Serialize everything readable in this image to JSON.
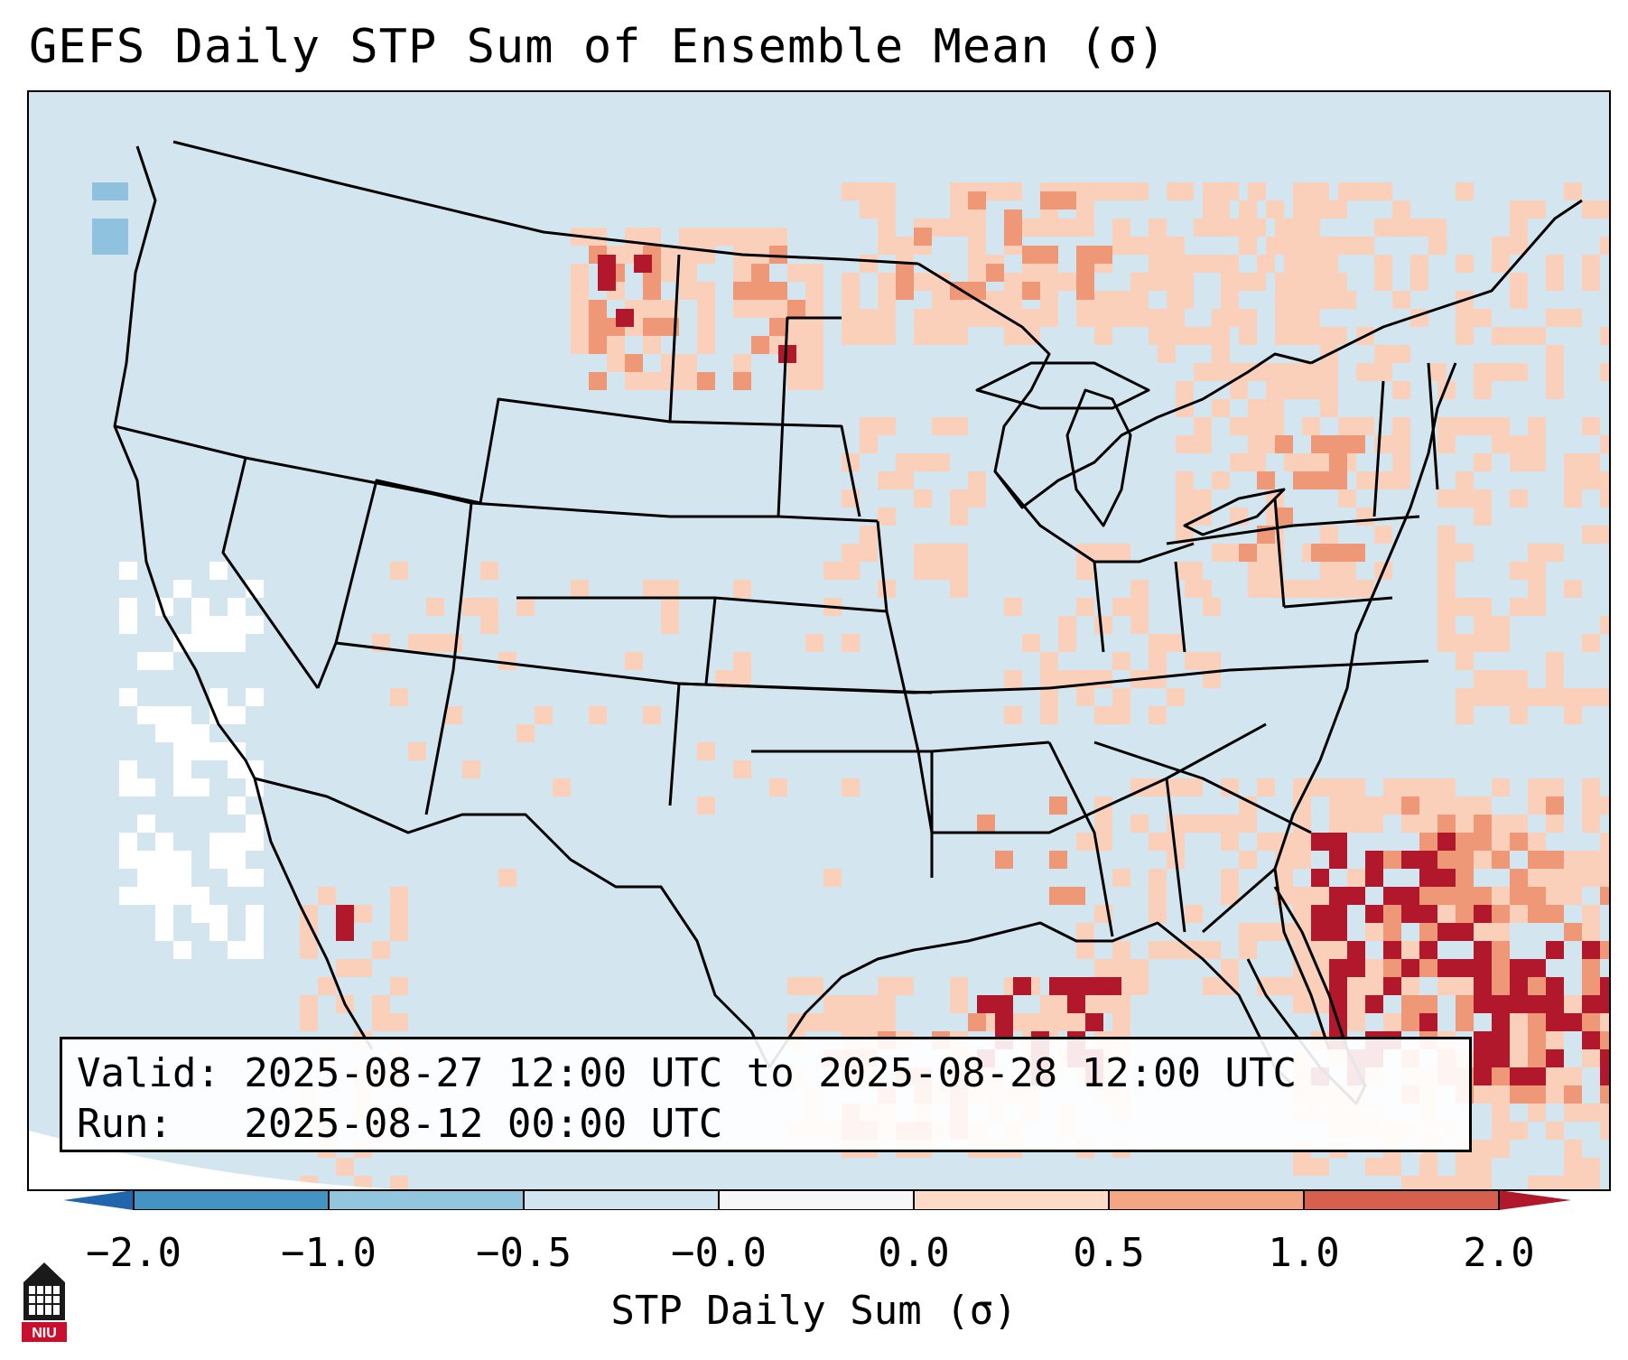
{
  "title": "GEFS Daily STP Sum of Ensemble Mean (σ)",
  "info": {
    "valid_line": "Valid: 2025-08-27 12:00 UTC to 2025-08-28 12:00 UTC",
    "run_line": "Run:   2025-08-12 00:00 UTC"
  },
  "colorbar": {
    "title": "STP Daily Sum (σ)",
    "ticks": [
      "−2.0",
      "−1.0",
      "−0.5",
      "−0.0",
      "0.0",
      "0.5",
      "1.0",
      "2.0"
    ],
    "colors": [
      "#2f7bb8",
      "#8ec2de",
      "#d3e5ef",
      "#ffffff",
      "#fbd5c0",
      "#ec9775",
      "#d55a4e",
      "#b2182b"
    ],
    "extend": "both"
  },
  "map": {
    "projection": "CONUS Lambert Conformal",
    "background_color": "#d3e5ef",
    "ocean_tint": "#ffffff"
  },
  "logo": {
    "text": "NIU",
    "icon": "niu-building-icon"
  }
}
